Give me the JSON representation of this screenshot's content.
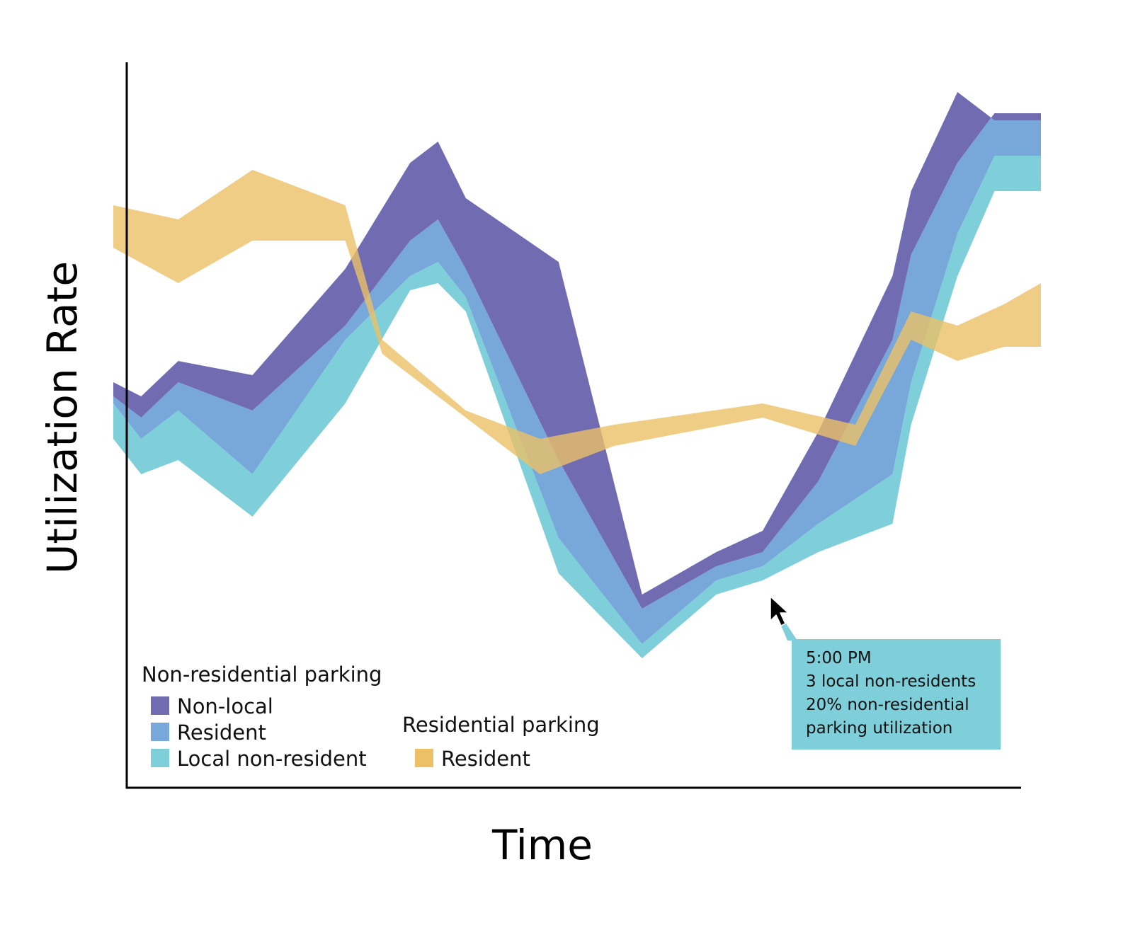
{
  "chart_data": {
    "type": "area",
    "title": "",
    "xlabel": "Time",
    "ylabel": "Utilization Rate",
    "x_ticks_shown": false,
    "y_ticks_shown": false,
    "grid": false,
    "xlim": [
      0,
      100
    ],
    "ylim": [
      0,
      100
    ],
    "legend": {
      "placement": "bottom-left",
      "groups": [
        {
          "title": "Non-residential parking",
          "items": [
            "Non-local",
            "Resident",
            "Local non-resident"
          ]
        },
        {
          "title": "Residential parking",
          "items": [
            "Resident"
          ]
        }
      ]
    },
    "stack_series": [
      {
        "name": "Local non-resident",
        "group": "Non-residential parking",
        "color": "#7ECFDA",
        "x": [
          0,
          3,
          7,
          15,
          25,
          32,
          35,
          38,
          48,
          57,
          65,
          70,
          76,
          84,
          86,
          91,
          95,
          100
        ],
        "bottom": [
          46,
          41,
          43,
          35,
          51,
          67,
          68,
          64,
          27,
          15,
          24,
          26,
          30,
          34,
          48,
          69,
          81,
          81
        ],
        "top": [
          51,
          46,
          50,
          41,
          60,
          69,
          71,
          66,
          32,
          17,
          26,
          28,
          34,
          41,
          54,
          75,
          86,
          86
        ]
      },
      {
        "name": "Resident",
        "group": "Non-residential parking",
        "color": "#78A7DA",
        "x": [
          0,
          3,
          7,
          15,
          25,
          32,
          35,
          38,
          48,
          57,
          65,
          70,
          76,
          84,
          86,
          91,
          95,
          100
        ],
        "bottom": [
          51,
          46,
          50,
          41,
          60,
          69,
          71,
          66,
          32,
          17,
          26,
          28,
          34,
          41,
          54,
          75,
          86,
          86
        ],
        "top": [
          52,
          49,
          54,
          50,
          62,
          74,
          77,
          70,
          43,
          22,
          28,
          30,
          40,
          60,
          72,
          85,
          92,
          92
        ]
      },
      {
        "name": "Non-local",
        "group": "Non-residential parking",
        "color": "#716CB2",
        "x": [
          0,
          3,
          7,
          15,
          25,
          32,
          35,
          38,
          48,
          57,
          65,
          70,
          76,
          84,
          86,
          91,
          95,
          100
        ],
        "bottom": [
          52,
          49,
          54,
          50,
          62,
          74,
          77,
          70,
          43,
          22,
          28,
          30,
          40,
          60,
          72,
          85,
          92,
          92
        ],
        "top": [
          54,
          52,
          57,
          55,
          70,
          85,
          88,
          80,
          71,
          24,
          30,
          33,
          47,
          69,
          81,
          95,
          91,
          91
        ]
      }
    ],
    "band_series": [
      {
        "name": "Resident",
        "group": "Residential parking",
        "color": "#EBC067",
        "x": [
          0,
          7,
          15,
          25,
          29,
          38,
          46,
          54,
          70,
          80,
          86,
          91,
          96,
          100
        ],
        "low": [
          73,
          68,
          74,
          74,
          58,
          49,
          41,
          45,
          49,
          45,
          60,
          57,
          59,
          59
        ],
        "high": [
          79,
          77,
          84,
          79,
          60,
          50,
          46,
          48,
          51,
          48,
          64,
          62,
          65,
          68
        ]
      }
    ],
    "annotation": {
      "x": 72,
      "y": 28,
      "color": "#7ECFDA",
      "lines": [
        "5:00 PM",
        "3 local non-residents",
        "20% non-residential",
        "parking utilization"
      ]
    }
  }
}
